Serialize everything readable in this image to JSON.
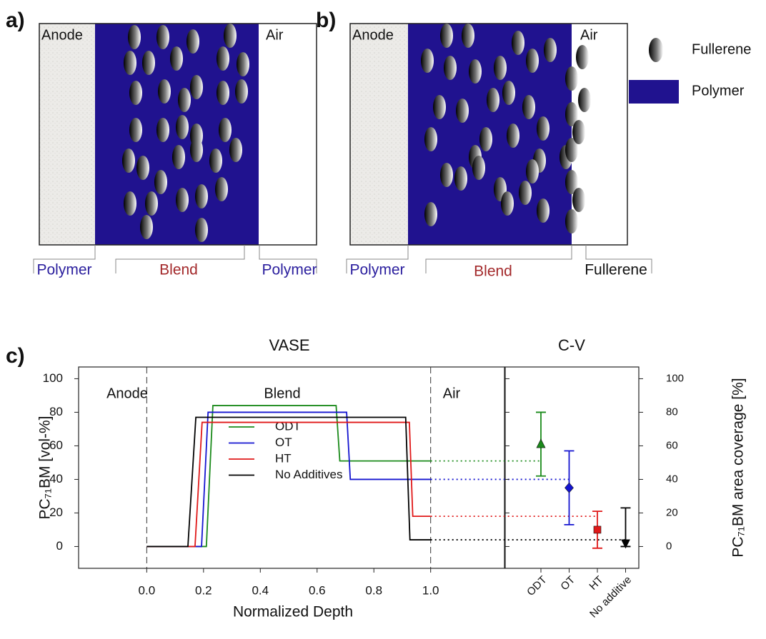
{
  "panel_a": {
    "label": "a)",
    "left_region": "Anode",
    "right_region": "Air",
    "layers": [
      "Polymer",
      "Blend",
      "Polymer"
    ]
  },
  "panel_b": {
    "label": "b)",
    "left_region": "Anode",
    "right_region": "Air",
    "layers": [
      "Polymer",
      "Blend",
      "Fullerene"
    ]
  },
  "key": [
    "Fullerene",
    "Polymer"
  ],
  "chart_data": [
    {
      "type": "line",
      "panel_label": "c)",
      "title": "VASE",
      "xlabel": "Normalized Depth",
      "ylabel": "PC₇₁BM [vol-%]",
      "annotations": [
        "Anode",
        "Blend",
        "Air"
      ],
      "xlim": [
        -0.24,
        1.26
      ],
      "ylim": [
        -13,
        107
      ],
      "xticks": [
        {
          "value": 0,
          "label": "0.0"
        },
        {
          "value": 0.2,
          "label": "0.2"
        },
        {
          "value": 0.4,
          "label": "0.4"
        },
        {
          "value": 0.6,
          "label": "0.6"
        },
        {
          "value": 0.8,
          "label": "0.8"
        },
        {
          "value": 1,
          "label": "1.0"
        }
      ],
      "yticks": [
        0,
        20,
        40,
        60,
        80,
        100
      ],
      "series": [
        {
          "name": "ODT",
          "color": "#1a8a1a",
          "x": [
            0,
            0.21,
            0.233,
            0.667,
            0.68,
            1.0
          ],
          "values": [
            0,
            0,
            84,
            84,
            51,
            51
          ]
        },
        {
          "name": "OT",
          "color": "#1414d0",
          "x": [
            0,
            0.193,
            0.216,
            0.704,
            0.717,
            1.0
          ],
          "values": [
            0,
            0,
            80,
            80,
            40,
            40
          ]
        },
        {
          "name": "HT",
          "color": "#e01818",
          "x": [
            0,
            0.17,
            0.195,
            0.925,
            0.937,
            1.0
          ],
          "values": [
            0,
            0,
            74,
            74,
            18,
            18
          ]
        },
        {
          "name": "No Additives",
          "color": "#000000",
          "x": [
            0,
            0.145,
            0.173,
            0.912,
            0.927,
            1.0
          ],
          "values": [
            0,
            0,
            77,
            77,
            4,
            4
          ]
        }
      ]
    },
    {
      "type": "errorbar",
      "title": "C-V",
      "ylabel": "PC₇₁BM area coverage [%]",
      "categories": [
        "ODT",
        "OT",
        "HT",
        "No additive"
      ],
      "values": [
        61,
        35,
        10,
        2
      ],
      "err_low": [
        19,
        22,
        11,
        2
      ],
      "err_high": [
        19,
        22,
        11,
        21
      ],
      "colors": [
        "#1a8a1a",
        "#1414d0",
        "#e01818",
        "#000000"
      ],
      "markers": [
        "triangle",
        "diamond",
        "square",
        "triangle-down"
      ],
      "ylim": [
        -13,
        107
      ],
      "yticks": [
        0,
        20,
        40,
        60,
        80,
        100
      ]
    }
  ]
}
